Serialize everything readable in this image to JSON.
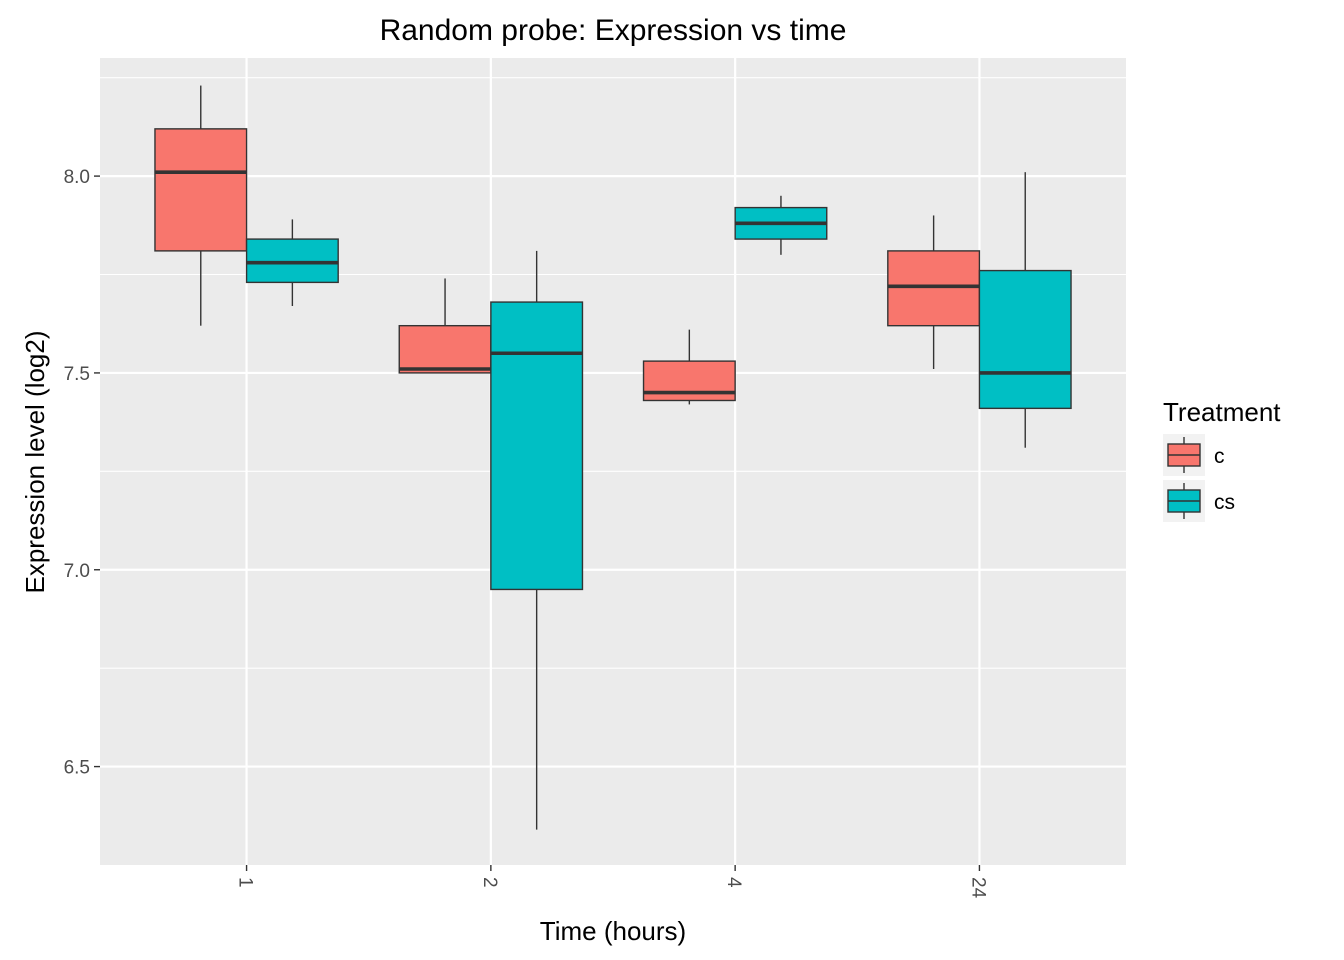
{
  "chart_data": {
    "type": "boxplot",
    "title": "Random probe: Expression vs time",
    "xlabel": "Time (hours)",
    "ylabel": "Expression level (log2)",
    "categories": [
      "1",
      "2",
      "4",
      "24"
    ],
    "ylim": [
      6.25,
      8.3
    ],
    "yticks": [
      6.5,
      7.0,
      7.5,
      8.0
    ],
    "ytick_labels": [
      "6.5",
      "7.0",
      "7.5",
      "8.0"
    ],
    "legend": {
      "title": "Treatment",
      "position": "right",
      "entries": [
        "c",
        "cs"
      ]
    },
    "series": [
      {
        "name": "c",
        "color": "#F8766D",
        "boxes": [
          {
            "category": "1",
            "min": 7.62,
            "q1": 7.81,
            "median": 8.01,
            "q3": 8.12,
            "max": 8.23
          },
          {
            "category": "2",
            "min": 7.5,
            "q1": 7.5,
            "median": 7.51,
            "q3": 7.62,
            "max": 7.74
          },
          {
            "category": "4",
            "min": 7.42,
            "q1": 7.43,
            "median": 7.45,
            "q3": 7.53,
            "max": 7.61
          },
          {
            "category": "24",
            "min": 7.51,
            "q1": 7.62,
            "median": 7.72,
            "q3": 7.81,
            "max": 7.9
          }
        ]
      },
      {
        "name": "cs",
        "color": "#00BFC4",
        "boxes": [
          {
            "category": "1",
            "min": 7.67,
            "q1": 7.73,
            "median": 7.78,
            "q3": 7.84,
            "max": 7.89
          },
          {
            "category": "2",
            "min": 6.34,
            "q1": 6.95,
            "median": 7.55,
            "q3": 7.68,
            "max": 7.81
          },
          {
            "category": "4",
            "min": 7.8,
            "q1": 7.84,
            "median": 7.88,
            "q3": 7.92,
            "max": 7.95
          },
          {
            "category": "24",
            "min": 7.31,
            "q1": 7.41,
            "median": 7.5,
            "q3": 7.76,
            "max": 8.01
          }
        ]
      }
    ],
    "grid": true,
    "panel_background": "#EBEBEB"
  }
}
